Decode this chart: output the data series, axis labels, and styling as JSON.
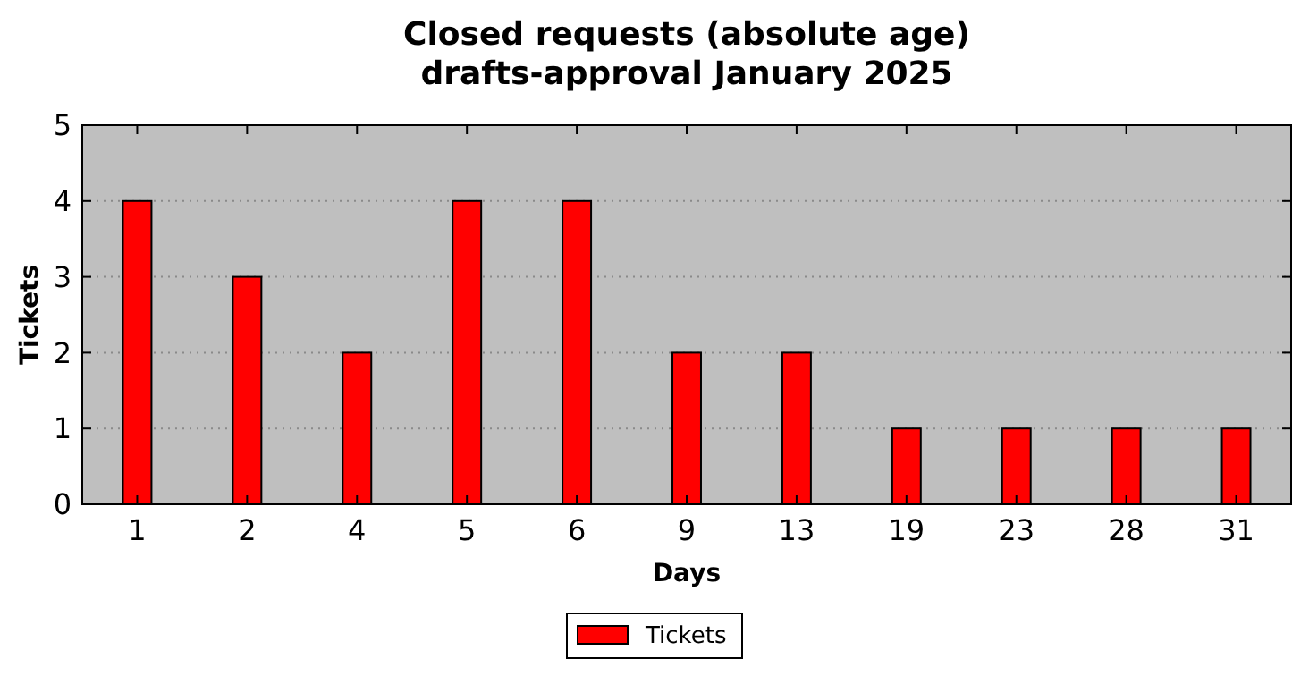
{
  "chart_data": {
    "type": "bar",
    "title": "Closed requests (absolute age)",
    "subtitle": "drafts-approval January 2025",
    "xlabel": "Days",
    "ylabel": "Tickets",
    "categories": [
      "1",
      "2",
      "4",
      "5",
      "6",
      "9",
      "13",
      "19",
      "23",
      "28",
      "31"
    ],
    "series": [
      {
        "name": "Tickets",
        "color": "#ff0000",
        "values": [
          4,
          3,
          2,
          4,
          4,
          2,
          2,
          1,
          1,
          1,
          1
        ]
      }
    ],
    "ylim": [
      0,
      5
    ],
    "yticks": [
      0,
      1,
      2,
      3,
      4,
      5
    ],
    "grid": "y",
    "legend": "bottom"
  }
}
